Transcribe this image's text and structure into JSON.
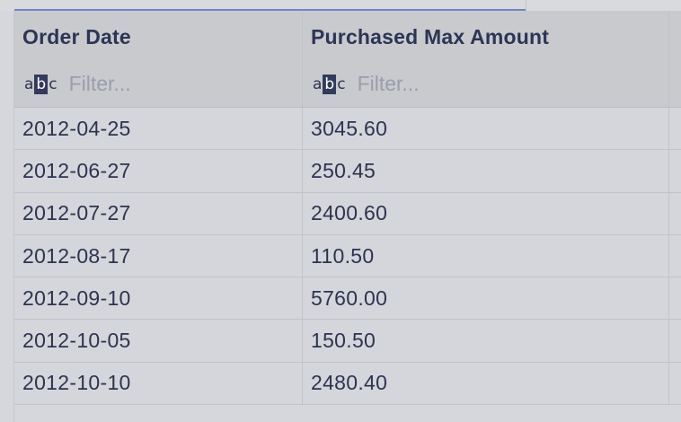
{
  "columns": [
    {
      "label": "Order Date",
      "filter_placeholder": "Filter...",
      "type_icon": "abc-text-icon"
    },
    {
      "label": "Purchased Max Amount",
      "filter_placeholder": "Filter...",
      "type_icon": "abc-text-icon"
    }
  ],
  "icon_text": {
    "a": "a",
    "b": "b",
    "c": "c"
  },
  "rows": [
    {
      "order_date": "2012-04-25",
      "amount": "3045.60"
    },
    {
      "order_date": "2012-06-27",
      "amount": "250.45"
    },
    {
      "order_date": "2012-07-27",
      "amount": "2400.60"
    },
    {
      "order_date": "2012-08-17",
      "amount": "110.50"
    },
    {
      "order_date": "2012-09-10",
      "amount": "5760.00"
    },
    {
      "order_date": "2012-10-05",
      "amount": "150.50"
    },
    {
      "order_date": "2012-10-10",
      "amount": "2480.40"
    }
  ],
  "colors": {
    "background": "#d6d7dc",
    "header_bg": "#c9cace",
    "text": "#2d3350",
    "placeholder": "#9a9dab",
    "tab_accent": "#6c86c8"
  }
}
